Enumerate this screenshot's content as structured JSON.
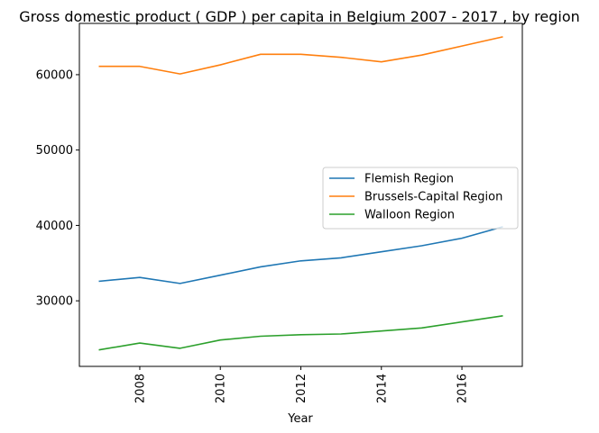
{
  "chart_data": {
    "type": "line",
    "title": "Gross domestic product ( GDP ) per capita in Belgium 2007 - 2017 , by region",
    "xlabel": "Year",
    "ylabel": "",
    "x": [
      2007,
      2008,
      2009,
      2010,
      2011,
      2012,
      2013,
      2014,
      2015,
      2016,
      2017
    ],
    "xlim": [
      2006.5,
      2017.5
    ],
    "ylim": [
      21300,
      66800
    ],
    "xticks": [
      2008,
      2010,
      2012,
      2014,
      2016
    ],
    "yticks": [
      30000,
      40000,
      50000,
      60000
    ],
    "grid": false,
    "legend_position": "center-right",
    "series": [
      {
        "name": "Flemish Region",
        "color": "#1f77b4",
        "values": [
          32600,
          33100,
          32300,
          33400,
          34500,
          35300,
          35700,
          36500,
          37300,
          38300,
          39800
        ]
      },
      {
        "name": "Brussels-Capital Region",
        "color": "#ff7f0e",
        "values": [
          61100,
          61100,
          60100,
          61300,
          62700,
          62700,
          62300,
          61700,
          62600,
          63800,
          65000
        ]
      },
      {
        "name": "Walloon Region",
        "color": "#2ca02c",
        "values": [
          23500,
          24400,
          23700,
          24800,
          25300,
          25500,
          25600,
          26000,
          26400,
          27200,
          28000
        ]
      }
    ]
  }
}
